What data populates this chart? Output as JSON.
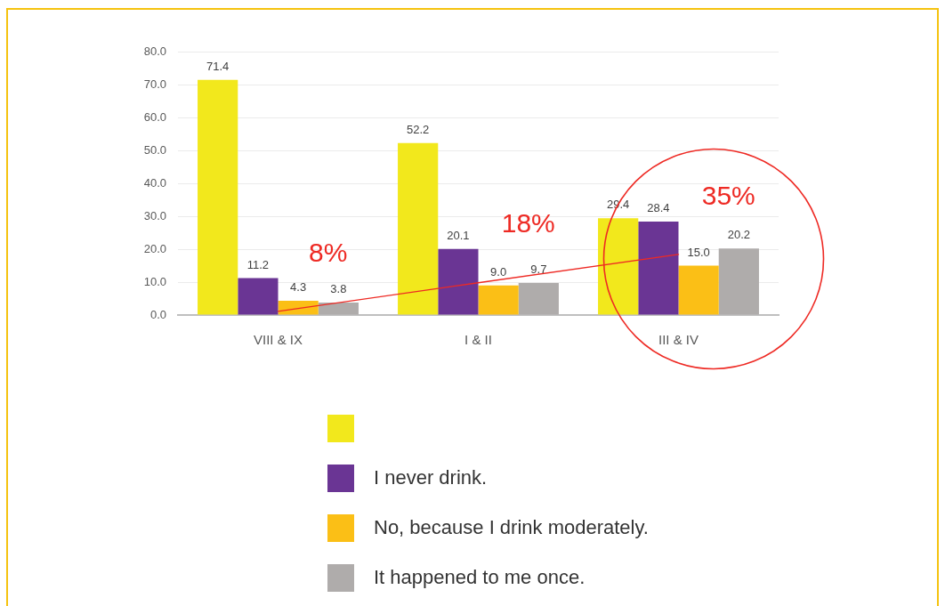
{
  "chart_data": {
    "type": "bar",
    "categories": [
      "VIII & IX",
      "I & II",
      "III & IV"
    ],
    "series": [
      {
        "color": "#f2e81c",
        "values": [
          71.4,
          52.2,
          29.4
        ],
        "value_labels": [
          "71.4",
          "52.2",
          "29.4"
        ]
      },
      {
        "name": "I never drink.",
        "color": "#6a3594",
        "values": [
          11.2,
          20.1,
          28.4
        ],
        "value_labels": [
          "11.2",
          "20.1",
          "28.4"
        ]
      },
      {
        "name": "No, because I drink moderately.",
        "color": "#fbbf16",
        "values": [
          4.3,
          9.0,
          15.0
        ],
        "value_labels": [
          "4.3",
          "9.0",
          "15.0"
        ]
      },
      {
        "name": "It happened to me once.",
        "color": "#afacab",
        "values": [
          3.8,
          9.7,
          20.2
        ],
        "value_labels": [
          "3.8",
          "9.7",
          "20.2"
        ]
      },
      {
        "type": "line",
        "color": "#ee2a24",
        "x": [
          "VIII & IX",
          "I & II",
          "III & IV"
        ],
        "values": [
          1.1,
          9.8,
          18.4
        ],
        "marker": "none"
      }
    ],
    "ylim": [
      0,
      80
    ],
    "yticks": [
      {
        "value": 0,
        "label": "0.0"
      },
      {
        "value": 10,
        "label": "10.0"
      },
      {
        "value": 20,
        "label": "20.0"
      },
      {
        "value": 30,
        "label": "30.0"
      },
      {
        "value": 40,
        "label": "40.0"
      },
      {
        "value": 50,
        "label": "50.0"
      },
      {
        "value": 60,
        "label": "60.0"
      },
      {
        "value": 70,
        "label": "70.0"
      },
      {
        "value": 80,
        "label": "80.0"
      }
    ],
    "grid": "y",
    "legend": "bottom",
    "annotations": [
      "8%",
      "18%",
      "35%"
    ]
  }
}
